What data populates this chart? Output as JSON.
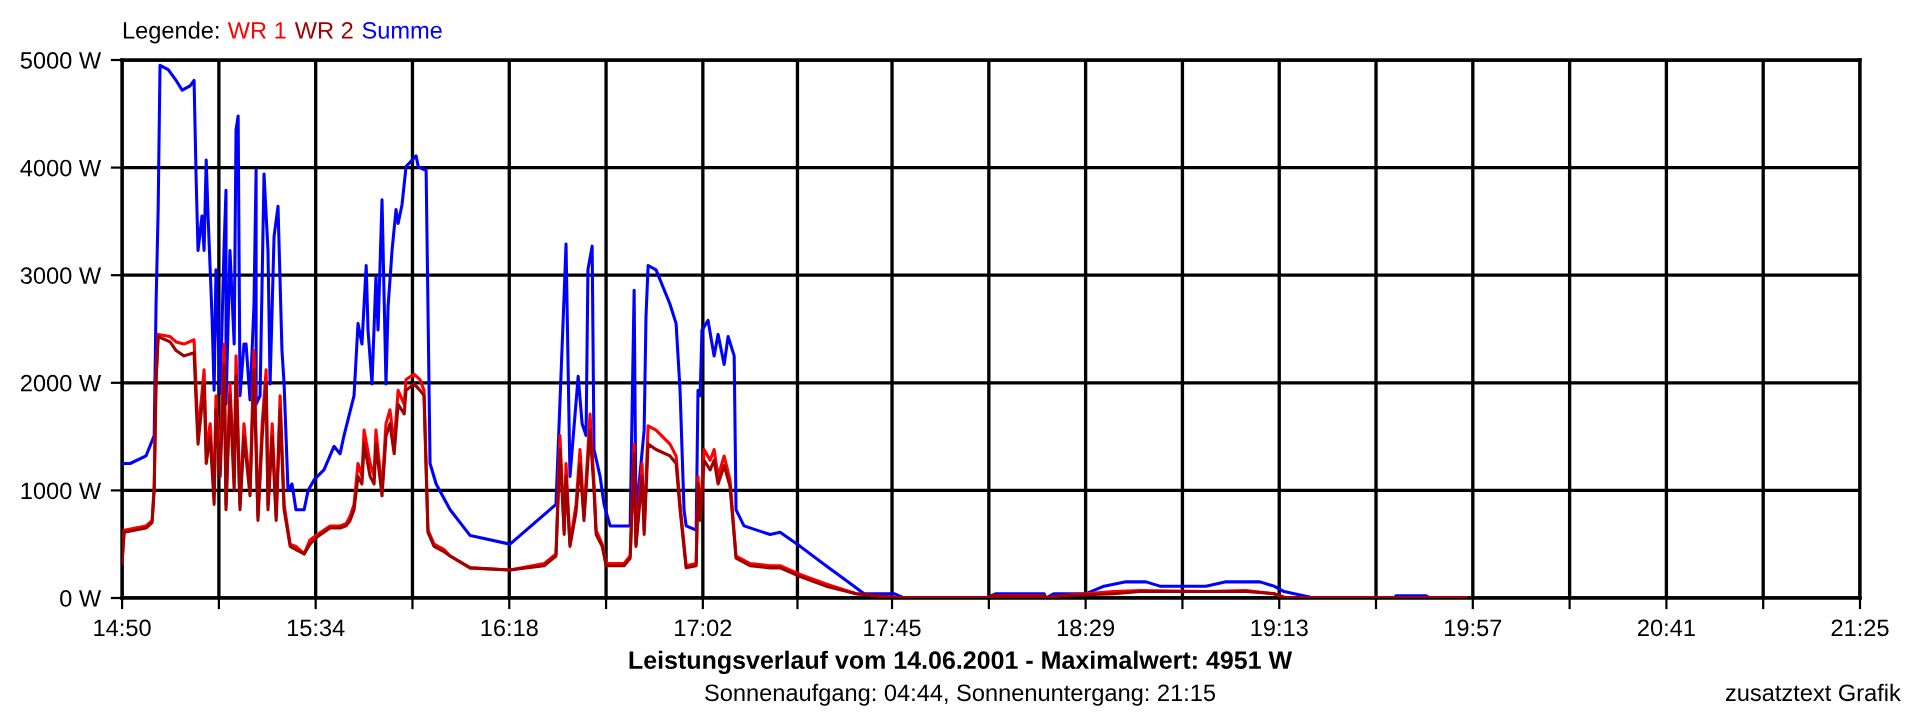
{
  "chart_data": {
    "type": "line",
    "title": "Leistungsverlauf vom 14.06.2001 - Maximalwert: 4951 W",
    "subtitle": "Sonnenaufgang: 04:44, Sonnenuntergang: 21:15",
    "legend_title": "Legende:",
    "annotations": [
      "zusatztext Grafik"
    ],
    "series": [
      {
        "name": "Summe",
        "color": "#0000ff",
        "x": [
          14.833,
          14.864,
          14.924,
          14.955,
          14.962,
          14.97,
          14.977,
          15.008,
          15.038,
          15.061,
          15.091,
          15.106,
          15.114,
          15.121,
          15.136,
          15.144,
          15.152,
          15.159,
          15.174,
          15.182,
          15.189,
          15.205,
          15.22,
          15.227,
          15.227,
          15.242,
          15.258,
          15.265,
          15.273,
          15.28,
          15.295,
          15.303,
          15.318,
          15.333,
          15.341,
          15.341,
          15.356,
          15.371,
          15.386,
          15.394,
          15.409,
          15.424,
          15.439,
          15.447,
          15.462,
          15.477,
          15.492,
          15.523,
          15.538,
          15.561,
          15.598,
          15.636,
          15.659,
          15.674,
          15.712,
          15.727,
          15.742,
          15.758,
          15.765,
          15.78,
          15.795,
          15.803,
          15.818,
          15.833,
          15.841,
          15.856,
          15.871,
          15.879,
          15.894,
          15.909,
          15.932,
          15.947,
          15.955,
          15.977,
          15.985,
          16.0,
          16.023,
          16.076,
          16.152,
          16.303,
          16.477,
          16.508,
          16.515,
          16.53,
          16.561,
          16.576,
          16.591,
          16.598,
          16.614,
          16.621,
          16.644,
          16.659,
          16.682,
          16.758,
          16.773,
          16.78,
          16.811,
          16.818,
          16.826,
          16.856,
          16.909,
          16.932,
          16.947,
          16.962,
          16.97,
          17.008,
          17.015,
          17.023,
          17.03,
          17.053,
          17.076,
          17.091,
          17.114,
          17.129,
          17.152,
          17.159,
          17.189,
          17.288,
          17.326,
          17.402,
          17.5,
          17.606,
          17.644,
          17.758,
          17.795,
          18.106,
          18.144,
          18.326,
          18.333,
          18.364,
          18.485,
          18.553,
          18.636,
          18.712,
          18.765,
          18.939,
          19.015,
          19.144,
          19.197,
          19.235,
          19.348,
          19.652,
          19.659,
          19.773,
          19.788,
          19.924
        ],
        "values": [
          1250,
          1250,
          1320,
          1510,
          2730,
          3610,
          4950,
          4910,
          4810,
          4720,
          4760,
          4810,
          3880,
          3230,
          3550,
          3230,
          4070,
          3550,
          2620,
          1930,
          3050,
          1900,
          3290,
          3790,
          1800,
          3230,
          2360,
          4350,
          4480,
          1880,
          2360,
          2360,
          1840,
          2730,
          3980,
          1800,
          1880,
          3940,
          3230,
          1990,
          3360,
          3640,
          2300,
          1990,
          1000,
          1060,
          820,
          820,
          1000,
          1100,
          1190,
          1410,
          1340,
          1510,
          1880,
          2550,
          2360,
          3090,
          2490,
          1990,
          2990,
          2490,
          3700,
          1990,
          2710,
          3230,
          3610,
          3480,
          3660,
          4010,
          4070,
          4110,
          4010,
          3980,
          3980,
          1250,
          1060,
          820,
          580,
          500,
          870,
          2830,
          3290,
          1130,
          2060,
          1620,
          1510,
          3050,
          3270,
          1380,
          1130,
          870,
          670,
          670,
          2860,
          760,
          1560,
          2620,
          3090,
          3050,
          2730,
          2550,
          1930,
          820,
          670,
          630,
          1930,
          1880,
          2490,
          2580,
          2250,
          2450,
          2170,
          2430,
          2250,
          820,
          670,
          590,
          610,
          480,
          300,
          110,
          40,
          40,
          0,
          0,
          40,
          40,
          0,
          40,
          40,
          110,
          150,
          150,
          110,
          110,
          150,
          150,
          110,
          60,
          0,
          0,
          20,
          20,
          0,
          0
        ]
      },
      {
        "name": "WR 1",
        "color": "#ff0000",
        "x": [
          14.833,
          14.841,
          14.924,
          14.947,
          14.955,
          14.962,
          14.97,
          15.015,
          15.038,
          15.068,
          15.106,
          15.114,
          15.121,
          15.144,
          15.152,
          15.167,
          15.182,
          15.189,
          15.205,
          15.22,
          15.227,
          15.242,
          15.258,
          15.265,
          15.28,
          15.295,
          15.318,
          15.333,
          15.348,
          15.364,
          15.379,
          15.386,
          15.402,
          15.417,
          15.432,
          15.447,
          15.47,
          15.492,
          15.523,
          15.545,
          15.568,
          15.621,
          15.659,
          15.682,
          15.697,
          15.712,
          15.727,
          15.742,
          15.75,
          15.773,
          15.788,
          15.795,
          15.818,
          15.833,
          15.848,
          15.864,
          15.879,
          15.902,
          15.909,
          15.939,
          15.962,
          15.977,
          15.992,
          16.015,
          16.053,
          16.076,
          16.152,
          16.303,
          16.432,
          16.477,
          16.492,
          16.508,
          16.515,
          16.53,
          16.553,
          16.568,
          16.583,
          16.606,
          16.621,
          16.629,
          16.652,
          16.667,
          16.735,
          16.758,
          16.773,
          16.78,
          16.803,
          16.811,
          16.826,
          16.856,
          16.909,
          16.932,
          16.947,
          16.97,
          17.008,
          17.015,
          17.023,
          17.038,
          17.061,
          17.076,
          17.091,
          17.114,
          17.136,
          17.159,
          17.212,
          17.288,
          17.326,
          17.402,
          17.5,
          17.614,
          17.78,
          18.106,
          18.136,
          18.326,
          18.333,
          18.386,
          18.591,
          18.689,
          18.939,
          19.091,
          19.197,
          19.242,
          19.924
        ],
        "values": [
          320,
          630,
          670,
          720,
          1040,
          2060,
          2450,
          2430,
          2380,
          2360,
          2400,
          1930,
          1520,
          2120,
          1380,
          1620,
          950,
          1880,
          1250,
          2360,
          870,
          1990,
          1130,
          2250,
          870,
          1620,
          1000,
          2300,
          760,
          1620,
          2120,
          870,
          1620,
          760,
          1880,
          870,
          500,
          480,
          410,
          540,
          580,
          670,
          670,
          690,
          760,
          870,
          1250,
          1130,
          1560,
          1250,
          1130,
          1560,
          1000,
          1620,
          1750,
          1430,
          1930,
          1800,
          2030,
          2080,
          2030,
          1930,
          630,
          500,
          450,
          390,
          280,
          260,
          320,
          410,
          1510,
          630,
          1250,
          500,
          870,
          1380,
          760,
          1710,
          1060,
          630,
          500,
          320,
          320,
          390,
          1430,
          500,
          1250,
          630,
          1600,
          1560,
          1430,
          1320,
          870,
          300,
          320,
          1130,
          760,
          1380,
          1280,
          1380,
          1130,
          1320,
          1100,
          390,
          320,
          300,
          300,
          220,
          130,
          40,
          0,
          0,
          20,
          20,
          0,
          20,
          60,
          70,
          60,
          70,
          40,
          0,
          0
        ]
      },
      {
        "name": "WR 2",
        "color": "#a00000",
        "x": [
          14.833,
          14.841,
          14.924,
          14.947,
          14.955,
          14.962,
          14.97,
          15.015,
          15.038,
          15.068,
          15.106,
          15.114,
          15.121,
          15.144,
          15.152,
          15.167,
          15.182,
          15.189,
          15.205,
          15.22,
          15.227,
          15.242,
          15.258,
          15.265,
          15.28,
          15.295,
          15.318,
          15.333,
          15.348,
          15.364,
          15.379,
          15.386,
          15.402,
          15.417,
          15.432,
          15.447,
          15.47,
          15.492,
          15.523,
          15.545,
          15.568,
          15.621,
          15.659,
          15.682,
          15.697,
          15.712,
          15.727,
          15.742,
          15.75,
          15.773,
          15.788,
          15.795,
          15.818,
          15.833,
          15.848,
          15.864,
          15.879,
          15.902,
          15.909,
          15.939,
          15.962,
          15.977,
          15.992,
          16.015,
          16.053,
          16.076,
          16.152,
          16.303,
          16.432,
          16.477,
          16.492,
          16.508,
          16.515,
          16.53,
          16.553,
          16.568,
          16.583,
          16.606,
          16.621,
          16.629,
          16.652,
          16.667,
          16.735,
          16.758,
          16.773,
          16.78,
          16.803,
          16.811,
          16.826,
          16.856,
          16.909,
          16.932,
          16.947,
          16.97,
          17.008,
          17.015,
          17.023,
          17.038,
          17.061,
          17.076,
          17.091,
          17.114,
          17.136,
          17.159,
          17.212,
          17.288,
          17.326,
          17.402,
          17.5,
          17.614,
          17.78,
          18.106,
          18.136,
          18.326,
          18.333,
          18.386,
          18.591,
          18.689,
          18.939,
          19.091,
          19.197,
          19.242,
          19.924
        ],
        "values": [
          320,
          610,
          650,
          700,
          1000,
          2000,
          2430,
          2380,
          2300,
          2250,
          2280,
          1800,
          1430,
          1990,
          1250,
          1500,
          870,
          1750,
          1130,
          2170,
          820,
          1880,
          1000,
          2060,
          820,
          1500,
          950,
          2120,
          720,
          1500,
          1990,
          820,
          1500,
          720,
          1750,
          820,
          480,
          450,
          410,
          500,
          560,
          650,
          650,
          670,
          720,
          820,
          1130,
          1060,
          1430,
          1130,
          1060,
          1430,
          950,
          1500,
          1620,
          1340,
          1800,
          1710,
          1930,
          1990,
          1930,
          1880,
          610,
          480,
          430,
          390,
          280,
          260,
          300,
          390,
          1380,
          590,
          1130,
          480,
          800,
          1250,
          720,
          1560,
          1000,
          590,
          480,
          300,
          300,
          370,
          1340,
          480,
          1130,
          590,
          1430,
          1380,
          1320,
          1250,
          820,
          280,
          300,
          1060,
          720,
          1280,
          1190,
          1280,
          1060,
          1230,
          1040,
          370,
          300,
          280,
          280,
          200,
          110,
          40,
          0,
          0,
          20,
          20,
          0,
          20,
          40,
          60,
          60,
          60,
          40,
          0,
          0
        ]
      }
    ],
    "xlim": [
      14.833,
      21.4167
    ],
    "xticks": [
      {
        "value": 14.8333,
        "label": "14:50"
      },
      {
        "value": 15.2,
        "label": null
      },
      {
        "value": 15.5667,
        "label": "15:34"
      },
      {
        "value": 15.9333,
        "label": null
      },
      {
        "value": 16.3,
        "label": "16:18"
      },
      {
        "value": 16.6667,
        "label": null
      },
      {
        "value": 17.0333,
        "label": "17:02"
      },
      {
        "value": 17.3917,
        "label": null
      },
      {
        "value": 17.75,
        "label": "17:45"
      },
      {
        "value": 18.1167,
        "label": null
      },
      {
        "value": 18.4833,
        "label": "18:29"
      },
      {
        "value": 18.85,
        "label": null
      },
      {
        "value": 19.2167,
        "label": "19:13"
      },
      {
        "value": 19.5833,
        "label": null
      },
      {
        "value": 19.95,
        "label": "19:57"
      },
      {
        "value": 20.3167,
        "label": null
      },
      {
        "value": 20.6833,
        "label": "20:41"
      },
      {
        "value": 21.05,
        "label": null
      },
      {
        "value": 21.4167,
        "label": "21:25"
      }
    ],
    "ylim": [
      0,
      5000
    ],
    "yticks": [
      {
        "value": 0,
        "label": "0 W"
      },
      {
        "value": 1000,
        "label": "1000 W"
      },
      {
        "value": 2000,
        "label": "2000 W"
      },
      {
        "value": 3000,
        "label": "3000 W"
      },
      {
        "value": 4000,
        "label": "4000 W"
      },
      {
        "value": 5000,
        "label": "5000 W"
      }
    ],
    "grid": true,
    "legend": "top left",
    "line_style": "solid",
    "marker": "none"
  }
}
